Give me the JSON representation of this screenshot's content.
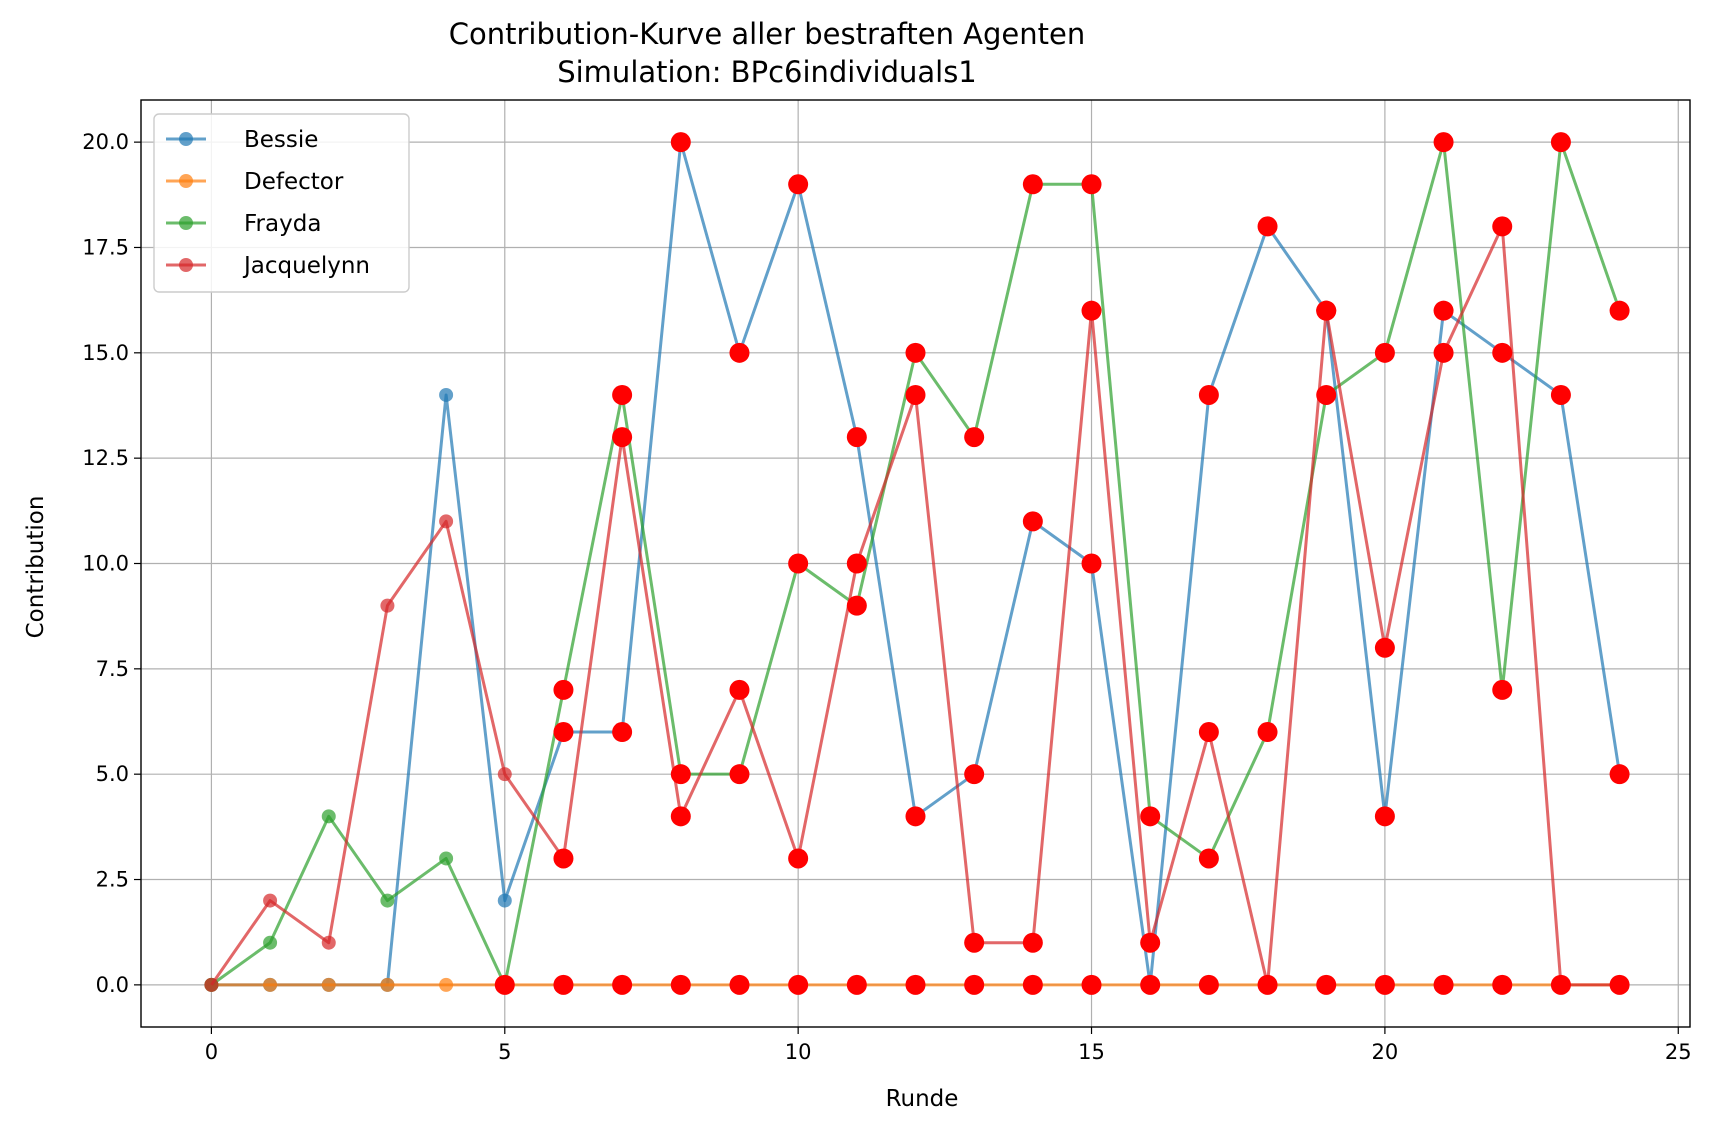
{
  "chart_data": {
    "type": "line",
    "title": "Contribution-Kurve aller bestraften Agenten",
    "subtitle": "Simulation: BPc6individuals1",
    "xlabel": "Runde",
    "ylabel": "Contribution",
    "xlim": [
      -1.2,
      25.2
    ],
    "ylim": [
      -1.0,
      21.0
    ],
    "xticks": [
      0,
      5,
      10,
      15,
      20,
      25
    ],
    "xtick_labels": [
      "0",
      "5",
      "10",
      "15",
      "20",
      "25"
    ],
    "yticks": [
      0,
      2.5,
      5,
      7.5,
      10,
      12.5,
      15,
      17.5,
      20
    ],
    "ytick_labels": [
      "0.0",
      "2.5",
      "5.0",
      "7.5",
      "10.0",
      "12.5",
      "15.0",
      "17.5",
      "20.0"
    ],
    "grid": true,
    "legend_position": "top-left",
    "punishment_marker_color": "#ff0000",
    "x": [
      0,
      1,
      2,
      3,
      4,
      5,
      6,
      7,
      8,
      9,
      10,
      11,
      12,
      13,
      14,
      15,
      16,
      17,
      18,
      19,
      20,
      21,
      22,
      23,
      24
    ],
    "series": [
      {
        "name": "Bessie",
        "color": "#1f77b4",
        "values": [
          0,
          0,
          0,
          0,
          14,
          2,
          6,
          6,
          20,
          15,
          19,
          13,
          4,
          5,
          11,
          10,
          0,
          14,
          18,
          16,
          4,
          16,
          15,
          14,
          5
        ]
      },
      {
        "name": "Defector",
        "color": "#ff7f0e",
        "values": [
          0,
          0,
          0,
          0,
          0,
          0,
          0,
          0,
          0,
          0,
          0,
          0,
          0,
          0,
          0,
          0,
          0,
          0,
          0,
          0,
          0,
          0,
          0,
          0,
          0
        ]
      },
      {
        "name": "Frayda",
        "color": "#2ca02c",
        "values": [
          0,
          1,
          4,
          2,
          3,
          0,
          7,
          14,
          5,
          5,
          10,
          9,
          15,
          13,
          19,
          19,
          4,
          3,
          6,
          14,
          15,
          20,
          7,
          20,
          16
        ]
      },
      {
        "name": "Jacquelynn",
        "color": "#d62728",
        "values": [
          0,
          2,
          1,
          9,
          11,
          5,
          3,
          13,
          4,
          7,
          3,
          10,
          14,
          1,
          1,
          16,
          1,
          6,
          0,
          16,
          8,
          15,
          18,
          0,
          0
        ]
      }
    ],
    "punished": [
      {
        "x": 5,
        "y": 0
      },
      {
        "x": 6,
        "y": 0
      },
      {
        "x": 7,
        "y": 0
      },
      {
        "x": 8,
        "y": 0
      },
      {
        "x": 9,
        "y": 0
      },
      {
        "x": 10,
        "y": 0
      },
      {
        "x": 11,
        "y": 0
      },
      {
        "x": 12,
        "y": 0
      },
      {
        "x": 13,
        "y": 0
      },
      {
        "x": 14,
        "y": 0
      },
      {
        "x": 15,
        "y": 0
      },
      {
        "x": 16,
        "y": 0
      },
      {
        "x": 17,
        "y": 0
      },
      {
        "x": 18,
        "y": 0
      },
      {
        "x": 19,
        "y": 0
      },
      {
        "x": 20,
        "y": 0
      },
      {
        "x": 21,
        "y": 0
      },
      {
        "x": 22,
        "y": 0
      },
      {
        "x": 23,
        "y": 0
      },
      {
        "x": 24,
        "y": 0
      },
      {
        "x": 6,
        "y": 6
      },
      {
        "x": 7,
        "y": 6
      },
      {
        "x": 8,
        "y": 20
      },
      {
        "x": 9,
        "y": 15
      },
      {
        "x": 10,
        "y": 19
      },
      {
        "x": 11,
        "y": 13
      },
      {
        "x": 12,
        "y": 4
      },
      {
        "x": 13,
        "y": 5
      },
      {
        "x": 14,
        "y": 11
      },
      {
        "x": 15,
        "y": 10
      },
      {
        "x": 17,
        "y": 14
      },
      {
        "x": 18,
        "y": 18
      },
      {
        "x": 19,
        "y": 16
      },
      {
        "x": 20,
        "y": 4
      },
      {
        "x": 21,
        "y": 16
      },
      {
        "x": 22,
        "y": 15
      },
      {
        "x": 23,
        "y": 14
      },
      {
        "x": 24,
        "y": 5
      },
      {
        "x": 6,
        "y": 7
      },
      {
        "x": 7,
        "y": 14
      },
      {
        "x": 8,
        "y": 5
      },
      {
        "x": 9,
        "y": 5
      },
      {
        "x": 10,
        "y": 10
      },
      {
        "x": 11,
        "y": 9
      },
      {
        "x": 12,
        "y": 15
      },
      {
        "x": 13,
        "y": 13
      },
      {
        "x": 14,
        "y": 19
      },
      {
        "x": 15,
        "y": 19
      },
      {
        "x": 16,
        "y": 4
      },
      {
        "x": 17,
        "y": 3
      },
      {
        "x": 18,
        "y": 6
      },
      {
        "x": 19,
        "y": 14
      },
      {
        "x": 20,
        "y": 15
      },
      {
        "x": 21,
        "y": 20
      },
      {
        "x": 22,
        "y": 7
      },
      {
        "x": 23,
        "y": 20
      },
      {
        "x": 24,
        "y": 16
      },
      {
        "x": 6,
        "y": 3
      },
      {
        "x": 7,
        "y": 13
      },
      {
        "x": 8,
        "y": 4
      },
      {
        "x": 9,
        "y": 7
      },
      {
        "x": 10,
        "y": 3
      },
      {
        "x": 11,
        "y": 10
      },
      {
        "x": 12,
        "y": 14
      },
      {
        "x": 13,
        "y": 1
      },
      {
        "x": 14,
        "y": 1
      },
      {
        "x": 15,
        "y": 16
      },
      {
        "x": 16,
        "y": 1
      },
      {
        "x": 17,
        "y": 6
      },
      {
        "x": 19,
        "y": 16
      },
      {
        "x": 20,
        "y": 8
      },
      {
        "x": 21,
        "y": 15
      },
      {
        "x": 22,
        "y": 18
      }
    ]
  }
}
